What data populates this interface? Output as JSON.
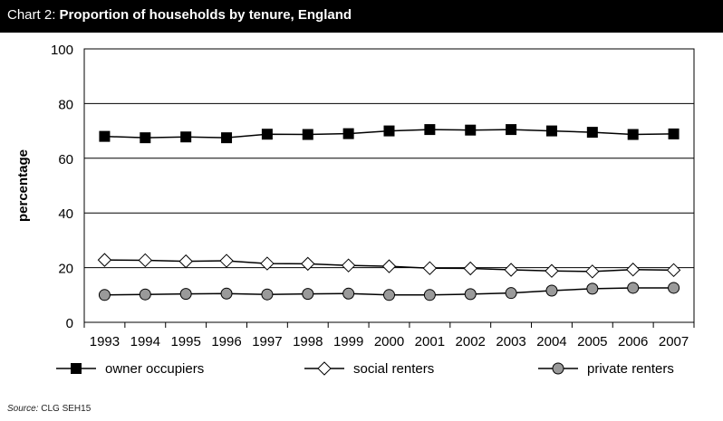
{
  "header": {
    "label": "Chart 2:",
    "title": "Proportion of households by tenure, England"
  },
  "source": {
    "prefix": "Source:",
    "text": "CLG SEH15"
  },
  "chart_data": {
    "type": "line",
    "title": "Proportion of households by tenure, England",
    "xlabel": "",
    "ylabel": "percentage",
    "ylim": [
      0,
      100
    ],
    "yticks": [
      0,
      20,
      40,
      60,
      80,
      100
    ],
    "grid": true,
    "legend": "bottom",
    "categories": [
      "1993",
      "1994",
      "1995",
      "1996",
      "1997",
      "1998",
      "1999",
      "2000",
      "2001",
      "2002",
      "2003",
      "2004",
      "2005",
      "2006",
      "2007"
    ],
    "series": [
      {
        "name": "owner occupiers",
        "marker": "square",
        "color": "#000000",
        "values": [
          68,
          67.5,
          67.8,
          67.5,
          68.8,
          68.7,
          69,
          70,
          70.5,
          70.3,
          70.5,
          70,
          69.5,
          68.7,
          68.9
        ]
      },
      {
        "name": "social renters",
        "marker": "diamond",
        "color": "#d0d0d0",
        "values": [
          22.8,
          22.7,
          22.3,
          22.5,
          21.5,
          21.4,
          20.8,
          20.5,
          19.8,
          19.7,
          19.2,
          18.8,
          18.6,
          19.3,
          19.1
        ]
      },
      {
        "name": "private renters",
        "marker": "circle",
        "color": "#9a9a9a",
        "values": [
          10,
          10.2,
          10.4,
          10.5,
          10.2,
          10.4,
          10.5,
          10,
          10,
          10.3,
          10.7,
          11.6,
          12.3,
          12.6,
          12.6
        ]
      }
    ]
  }
}
